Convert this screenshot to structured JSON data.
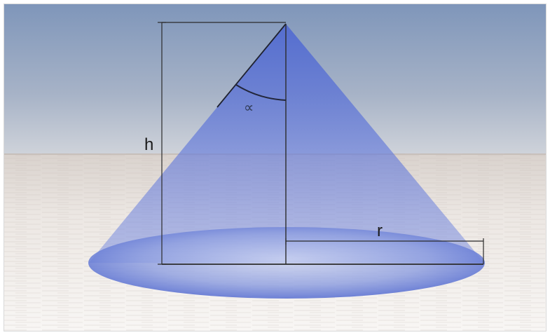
{
  "labels": {
    "height": "h",
    "radius": "r",
    "angle": "∝"
  },
  "colors": {
    "sky_top": "#7f96ba",
    "sky_bottom": "#c9d1dd",
    "ground_top": "#ddd7d3",
    "ground_bottom": "#f7f4f1",
    "cone_fill": "#4d67d6",
    "base_fill": "#5a72d0",
    "line": "#2b2b2b"
  }
}
